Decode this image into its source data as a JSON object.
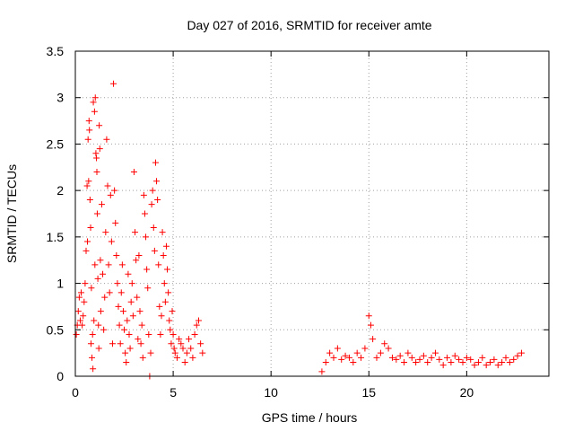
{
  "chart_data": {
    "type": "scatter",
    "title": "Day 027 of 2016, SRMTID for receiver amte",
    "xlabel": "GPS time / hours",
    "ylabel": "SRMTID / TECUs",
    "xlim": [
      0,
      24.2
    ],
    "ylim": [
      0,
      3.5
    ],
    "x_ticks": [
      0,
      5,
      10,
      15,
      20
    ],
    "x_tick_labels": [
      "0",
      "5",
      "10",
      "15",
      "20"
    ],
    "y_ticks": [
      0,
      0.5,
      1,
      1.5,
      2,
      2.5,
      3,
      3.5
    ],
    "y_tick_labels": [
      "0",
      "0.5",
      "1",
      "1.5",
      "2",
      "2.5",
      "3",
      "3.5"
    ],
    "grid": true,
    "marker": "+",
    "color": "#ff0000",
    "series": [
      {
        "name": "SRMTID",
        "points": [
          [
            0.05,
            0.45
          ],
          [
            0.1,
            0.55
          ],
          [
            0.15,
            0.7
          ],
          [
            0.2,
            0.85
          ],
          [
            0.25,
            0.6
          ],
          [
            0.3,
            0.9
          ],
          [
            0.35,
            0.55
          ],
          [
            0.4,
            0.65
          ],
          [
            0.45,
            0.8
          ],
          [
            0.5,
            1.0
          ],
          [
            0.55,
            1.35
          ],
          [
            0.6,
            2.05
          ],
          [
            0.65,
            2.55
          ],
          [
            0.7,
            2.75
          ],
          [
            0.75,
            1.9
          ],
          [
            0.8,
            0.35
          ],
          [
            0.85,
            0.2
          ],
          [
            0.9,
            0.08
          ],
          [
            0.95,
            0.6
          ],
          [
            1.0,
            1.2
          ],
          [
            0.62,
            1.45
          ],
          [
            0.68,
            2.1
          ],
          [
            0.72,
            2.65
          ],
          [
            0.78,
            1.6
          ],
          [
            0.82,
            0.95
          ],
          [
            0.88,
            0.45
          ],
          [
            0.92,
            2.95
          ],
          [
            0.98,
            2.85
          ],
          [
            1.02,
            3.0
          ],
          [
            1.05,
            2.4
          ],
          [
            1.08,
            2.35
          ],
          [
            1.1,
            2.2
          ],
          [
            1.12,
            1.75
          ],
          [
            1.15,
            1.05
          ],
          [
            1.18,
            0.55
          ],
          [
            1.2,
            0.3
          ],
          [
            1.22,
            2.7
          ],
          [
            1.25,
            2.45
          ],
          [
            1.28,
            1.25
          ],
          [
            1.3,
            0.7
          ],
          [
            1.35,
            1.85
          ],
          [
            1.4,
            1.1
          ],
          [
            1.45,
            0.5
          ],
          [
            1.5,
            0.85
          ],
          [
            1.55,
            1.55
          ],
          [
            1.6,
            2.55
          ],
          [
            1.65,
            2.05
          ],
          [
            1.7,
            1.2
          ],
          [
            1.75,
            0.9
          ],
          [
            1.8,
            1.95
          ],
          [
            1.85,
            1.45
          ],
          [
            1.9,
            0.35
          ],
          [
            1.95,
            3.15
          ],
          [
            2.0,
            2.0
          ],
          [
            2.05,
            1.65
          ],
          [
            2.1,
            1.3
          ],
          [
            2.15,
            1.0
          ],
          [
            2.2,
            0.75
          ],
          [
            2.25,
            0.55
          ],
          [
            2.3,
            0.35
          ],
          [
            2.35,
            0.9
          ],
          [
            2.4,
            1.2
          ],
          [
            2.45,
            0.7
          ],
          [
            2.5,
            0.5
          ],
          [
            2.55,
            0.25
          ],
          [
            2.6,
            0.15
          ],
          [
            2.65,
            0.6
          ],
          [
            2.7,
            1.1
          ],
          [
            2.75,
            0.45
          ],
          [
            2.8,
            0.3
          ],
          [
            2.85,
            0.8
          ],
          [
            2.9,
            1.0
          ],
          [
            2.95,
            0.65
          ],
          [
            3.0,
            2.2
          ],
          [
            3.05,
            1.55
          ],
          [
            3.1,
            1.25
          ],
          [
            3.15,
            0.85
          ],
          [
            3.2,
            0.4
          ],
          [
            3.25,
            1.3
          ],
          [
            3.3,
            0.7
          ],
          [
            3.35,
            0.35
          ],
          [
            3.4,
            0.55
          ],
          [
            3.45,
            0.2
          ],
          [
            3.5,
            1.95
          ],
          [
            3.55,
            1.75
          ],
          [
            3.6,
            1.5
          ],
          [
            3.65,
            1.15
          ],
          [
            3.7,
            0.95
          ],
          [
            3.75,
            0.45
          ],
          [
            3.8,
            0.0
          ],
          [
            3.85,
            0.25
          ],
          [
            3.9,
            1.85
          ],
          [
            3.95,
            2.0
          ],
          [
            4.0,
            1.6
          ],
          [
            4.05,
            1.35
          ],
          [
            4.1,
            2.3
          ],
          [
            4.15,
            2.1
          ],
          [
            4.2,
            1.9
          ],
          [
            4.25,
            1.2
          ],
          [
            4.3,
            0.75
          ],
          [
            4.35,
            0.45
          ],
          [
            4.4,
            0.65
          ],
          [
            4.45,
            1.55
          ],
          [
            4.5,
            1.3
          ],
          [
            4.55,
            1.0
          ],
          [
            4.6,
            0.8
          ],
          [
            4.65,
            1.4
          ],
          [
            4.7,
            1.15
          ],
          [
            4.75,
            0.9
          ],
          [
            4.8,
            0.6
          ],
          [
            4.85,
            0.5
          ],
          [
            4.9,
            0.35
          ],
          [
            4.95,
            0.7
          ],
          [
            5.0,
            0.45
          ],
          [
            5.05,
            0.3
          ],
          [
            5.1,
            0.25
          ],
          [
            5.2,
            0.2
          ],
          [
            5.3,
            0.4
          ],
          [
            5.4,
            0.35
          ],
          [
            5.5,
            0.3
          ],
          [
            5.6,
            0.15
          ],
          [
            5.7,
            0.25
          ],
          [
            5.8,
            0.4
          ],
          [
            5.9,
            0.3
          ],
          [
            6.0,
            0.2
          ],
          [
            6.1,
            0.45
          ],
          [
            6.2,
            0.55
          ],
          [
            6.3,
            0.6
          ],
          [
            6.4,
            0.35
          ],
          [
            6.5,
            0.25
          ],
          [
            12.6,
            0.05
          ],
          [
            12.8,
            0.15
          ],
          [
            13.0,
            0.25
          ],
          [
            13.2,
            0.2
          ],
          [
            13.4,
            0.3
          ],
          [
            13.6,
            0.18
          ],
          [
            13.8,
            0.22
          ],
          [
            14.0,
            0.2
          ],
          [
            14.2,
            0.15
          ],
          [
            14.4,
            0.25
          ],
          [
            14.6,
            0.2
          ],
          [
            14.8,
            0.3
          ],
          [
            15.0,
            0.65
          ],
          [
            15.1,
            0.55
          ],
          [
            15.2,
            0.4
          ],
          [
            15.4,
            0.2
          ],
          [
            15.6,
            0.25
          ],
          [
            15.8,
            0.35
          ],
          [
            16.0,
            0.3
          ],
          [
            16.2,
            0.2
          ],
          [
            16.4,
            0.18
          ],
          [
            16.6,
            0.22
          ],
          [
            16.8,
            0.15
          ],
          [
            17.0,
            0.25
          ],
          [
            17.2,
            0.2
          ],
          [
            17.4,
            0.15
          ],
          [
            17.6,
            0.18
          ],
          [
            17.8,
            0.22
          ],
          [
            18.0,
            0.15
          ],
          [
            18.2,
            0.2
          ],
          [
            18.4,
            0.25
          ],
          [
            18.6,
            0.18
          ],
          [
            18.8,
            0.12
          ],
          [
            19.0,
            0.2
          ],
          [
            19.2,
            0.15
          ],
          [
            19.4,
            0.22
          ],
          [
            19.6,
            0.18
          ],
          [
            19.8,
            0.15
          ],
          [
            20.0,
            0.2
          ],
          [
            20.2,
            0.18
          ],
          [
            20.4,
            0.12
          ],
          [
            20.6,
            0.15
          ],
          [
            20.8,
            0.2
          ],
          [
            21.0,
            0.12
          ],
          [
            21.2,
            0.15
          ],
          [
            21.4,
            0.18
          ],
          [
            21.6,
            0.12
          ],
          [
            21.8,
            0.15
          ],
          [
            22.0,
            0.2
          ],
          [
            22.2,
            0.15
          ],
          [
            22.4,
            0.18
          ],
          [
            22.6,
            0.22
          ],
          [
            22.8,
            0.25
          ]
        ]
      }
    ]
  }
}
